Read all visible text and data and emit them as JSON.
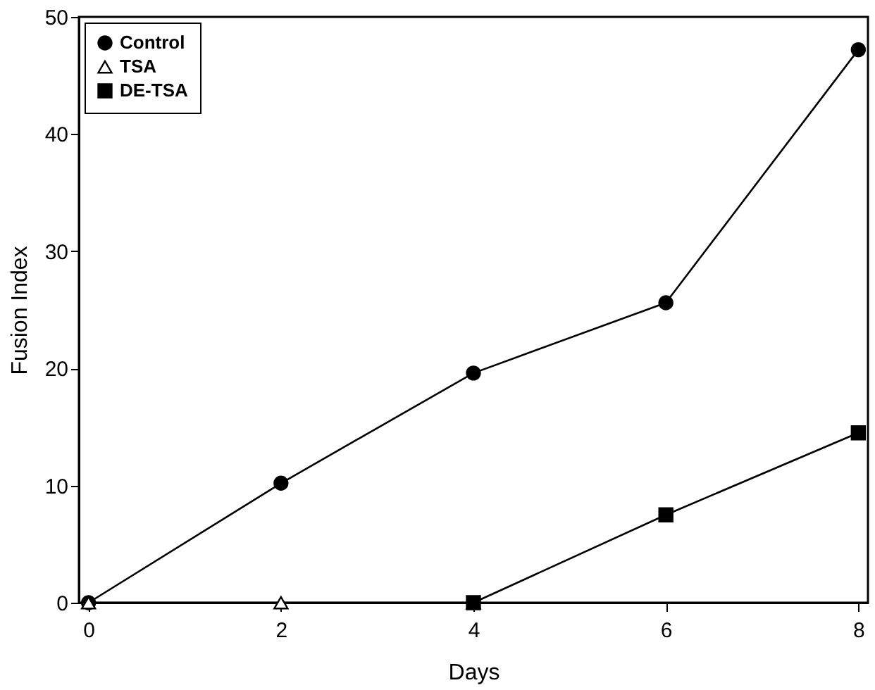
{
  "chart_data": {
    "type": "line",
    "xlabel": "Days",
    "ylabel": "Fusion Index",
    "x": [
      0,
      2,
      4,
      6,
      8
    ],
    "series": [
      {
        "name": "Control",
        "color": "#000000",
        "marker": "circle",
        "values": [
          0,
          10.2,
          19.6,
          25.6,
          47.2
        ]
      },
      {
        "name": "TSA",
        "color": "#000000",
        "marker": "triangle",
        "values": [
          0,
          0,
          0,
          null,
          null
        ]
      },
      {
        "name": "DE-TSA",
        "color": "#000000",
        "marker": "square",
        "values": [
          null,
          null,
          0,
          7.5,
          14.5
        ]
      }
    ],
    "xlim": [
      -0.1,
      8.1
    ],
    "xticks": [
      0,
      2,
      4,
      6,
      8
    ],
    "ylim": [
      0,
      50
    ],
    "yticks": [
      0,
      10,
      20,
      30,
      40,
      50
    ],
    "grid": false,
    "legend": "top left",
    "line_style": "solid"
  }
}
